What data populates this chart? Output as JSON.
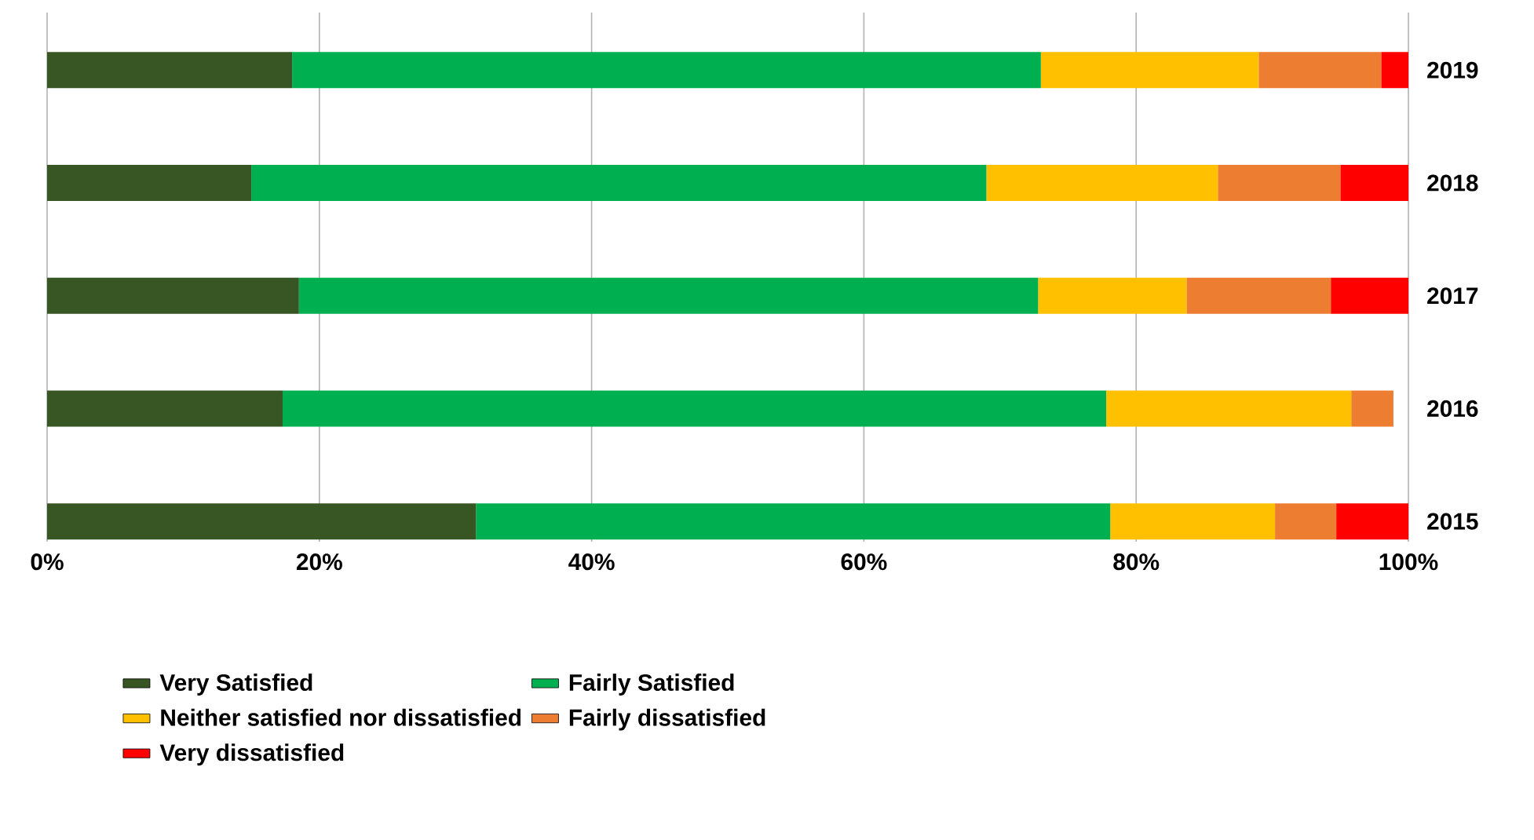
{
  "chart_data": {
    "type": "bar",
    "orientation": "horizontal",
    "stacked": true,
    "categories": [
      "2019",
      "2018",
      "2017",
      "2016",
      "2015"
    ],
    "series": [
      {
        "name": "Very Satisfied",
        "color": "#375623",
        "values": [
          18,
          15,
          18.5,
          17.3,
          31.5
        ]
      },
      {
        "name": "Fairly Satisfied",
        "color": "#00b050",
        "values": [
          55,
          54,
          54.3,
          60.5,
          46.6
        ]
      },
      {
        "name": "Neither satisfied nor dissatisfied",
        "color": "#ffc000",
        "values": [
          16,
          17,
          10.9,
          18,
          12.1
        ]
      },
      {
        "name": "Fairly dissatisfied",
        "color": "#ed7d31",
        "values": [
          9,
          9,
          10.6,
          3.1,
          4.5
        ]
      },
      {
        "name": "Very dissatisfied",
        "color": "#ff0000",
        "values": [
          2,
          5,
          5.7,
          null,
          5.3
        ]
      }
    ],
    "xlim": [
      0,
      100
    ],
    "xticks": [
      {
        "value": 0,
        "label": "0%"
      },
      {
        "value": 20,
        "label": "20%"
      },
      {
        "value": 40,
        "label": "40%"
      },
      {
        "value": 60,
        "label": "60%"
      },
      {
        "value": 80,
        "label": "80%"
      },
      {
        "value": 100,
        "label": "100%"
      }
    ],
    "grid": "x",
    "legend": "bottom"
  }
}
